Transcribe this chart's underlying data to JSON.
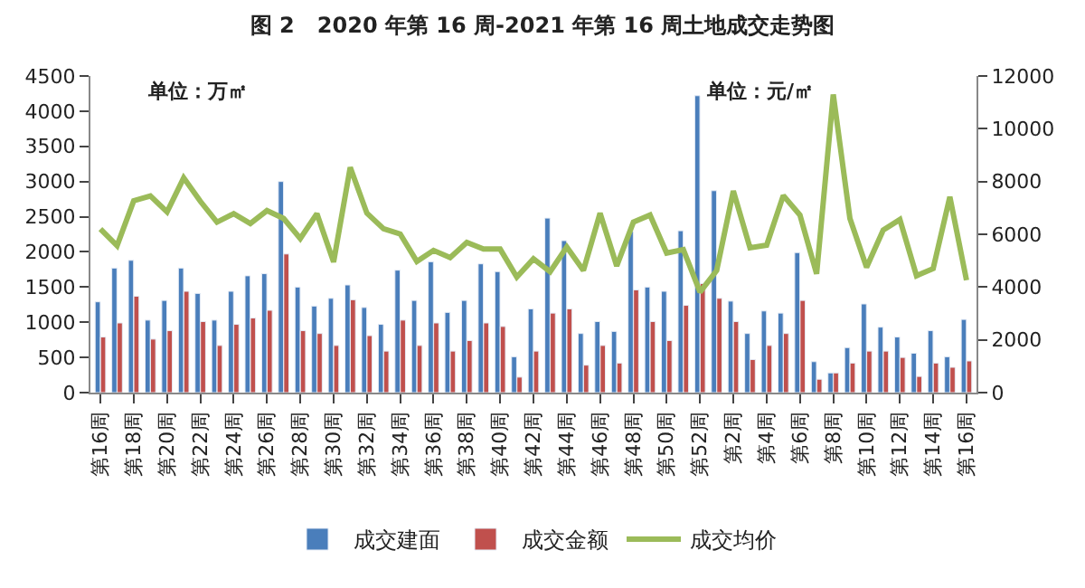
{
  "chart_data": {
    "type": "bar",
    "title": "图 2   2020 年第 16 周-2021 年第 16 周土地成交走势图",
    "categories": [
      "第16周",
      null,
      "第18周",
      null,
      "第20周",
      null,
      "第22周",
      null,
      "第24周",
      null,
      "第26周",
      null,
      "第28周",
      null,
      "第30周",
      null,
      "第32周",
      null,
      "第34周",
      null,
      "第36周",
      null,
      "第38周",
      null,
      "第40周",
      null,
      "第42周",
      null,
      "第44周",
      null,
      "第46周",
      null,
      "第48周",
      null,
      "第50周",
      null,
      "第52周",
      null,
      "第2周",
      null,
      "第4周",
      null,
      "第6周",
      null,
      "第8周",
      null,
      "第10周",
      null,
      "第12周",
      null,
      "第14周",
      null,
      "第16周"
    ],
    "series": [
      {
        "name": "成交建面",
        "color": "#4a7ebb",
        "values": [
          1290,
          1770,
          1880,
          1030,
          1310,
          1770,
          1410,
          1030,
          1440,
          1660,
          1690,
          3000,
          1500,
          1230,
          1340,
          1530,
          1210,
          970,
          1740,
          1310,
          1860,
          1140,
          1310,
          1830,
          1720,
          510,
          1190,
          2480,
          2160,
          840,
          1010,
          870,
          2290,
          1500,
          1440,
          2300,
          4220,
          2870,
          1300,
          840,
          1160,
          1130,
          1990,
          440,
          280,
          640,
          1260,
          930,
          790,
          560,
          880,
          510,
          1040
        ]
      },
      {
        "name": "成交金额",
        "color": "#c0504d",
        "values": [
          790,
          990,
          1370,
          760,
          880,
          1440,
          1010,
          670,
          970,
          1060,
          1170,
          1970,
          880,
          840,
          670,
          1320,
          810,
          590,
          1030,
          670,
          990,
          590,
          740,
          990,
          940,
          220,
          590,
          1130,
          1190,
          390,
          670,
          420,
          1460,
          1010,
          740,
          1240,
          1550,
          1340,
          1010,
          470,
          670,
          840,
          1310,
          190,
          280,
          420,
          590,
          590,
          500,
          230,
          420,
          360,
          450
        ]
      },
      {
        "name": "成交均价",
        "color": "#9bbb59",
        "type": "line",
        "axis": "y2",
        "values": [
          6200,
          5570,
          7270,
          7450,
          6850,
          8140,
          7250,
          6460,
          6780,
          6410,
          6900,
          6600,
          5840,
          6780,
          4950,
          8540,
          6800,
          6210,
          6010,
          4970,
          5390,
          5120,
          5690,
          5440,
          5440,
          4380,
          5070,
          4580,
          5520,
          4630,
          6800,
          4800,
          6460,
          6730,
          5290,
          5420,
          3810,
          4630,
          7640,
          5490,
          5590,
          7470,
          6730,
          4500,
          11300,
          6600,
          4750,
          6160,
          6560,
          4430,
          4700,
          7420,
          4260
        ]
      }
    ],
    "ylim": [
      0,
      4500
    ],
    "yticks": [
      0,
      500,
      1000,
      1500,
      2000,
      2500,
      3000,
      3500,
      4000,
      4500
    ],
    "y2lim": [
      0,
      12000
    ],
    "y2ticks": [
      0,
      2000,
      4000,
      6000,
      8000,
      10000,
      12000
    ],
    "annotations": [
      "单位：万㎡",
      "单位：元/㎡"
    ],
    "legend": "bottom",
    "marker": "none",
    "line_style": "solid"
  }
}
